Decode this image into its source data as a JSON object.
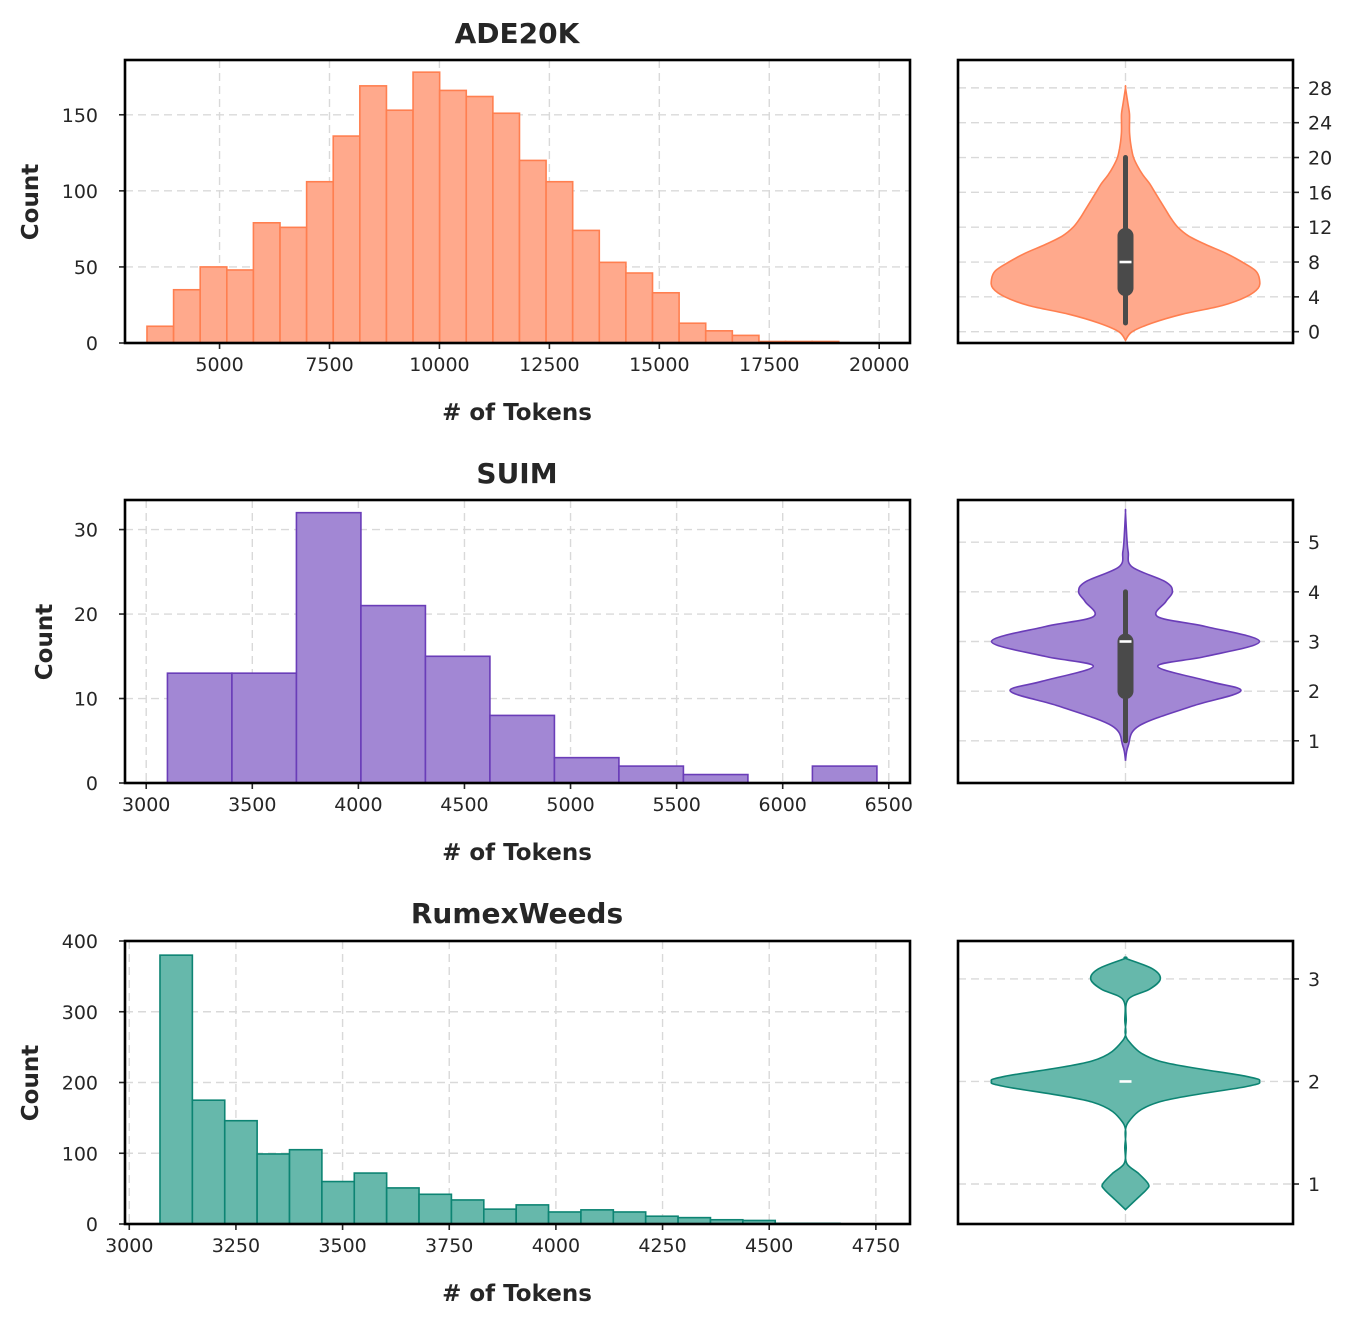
{
  "chart_data": [
    {
      "type": "histogram+violin",
      "title": "ADE20K",
      "xlabel": "# of Tokens",
      "ylabel": "Count",
      "color": "#ff7f50",
      "fill": "#ffa98c",
      "xlim": [
        2850,
        20700
      ],
      "ylim": [
        0,
        186
      ],
      "xticks": [
        5000,
        7500,
        10000,
        12500,
        15000,
        17500,
        20000
      ],
      "yticks": [
        0,
        50,
        100,
        150
      ],
      "bin_start": 3350,
      "bin_width": 605,
      "counts": [
        11,
        35,
        50,
        48,
        79,
        76,
        106,
        136,
        169,
        153,
        178,
        166,
        162,
        151,
        120,
        106,
        74,
        53,
        46,
        33,
        13,
        8,
        5,
        1,
        1,
        1,
        0
      ],
      "violin": {
        "ylim": [
          -1.3,
          31.2
        ],
        "yticks": [
          0,
          4,
          8,
          12,
          16,
          20,
          24,
          28
        ],
        "median": 8,
        "q1": 5,
        "q3": 11,
        "whisker_low": 1,
        "whisker_high": 20,
        "density_y": [
          -1,
          0,
          1,
          2,
          3,
          4,
          5,
          6,
          7,
          8,
          9,
          10,
          11,
          12,
          13,
          14,
          15,
          16,
          17,
          18,
          19,
          20,
          21,
          22,
          23,
          24,
          25,
          26,
          28
        ],
        "density_w": [
          0,
          0.05,
          0.2,
          0.42,
          0.72,
          0.9,
          0.99,
          1,
          0.97,
          0.87,
          0.75,
          0.6,
          0.47,
          0.39,
          0.34,
          0.3,
          0.26,
          0.22,
          0.18,
          0.13,
          0.09,
          0.06,
          0.045,
          0.035,
          0.03,
          0.03,
          0.03,
          0.02,
          0
        ]
      }
    },
    {
      "type": "histogram+violin",
      "title": "SUIM",
      "xlabel": "# of Tokens",
      "ylabel": "Count",
      "color": "#6a3db8",
      "fill": "#a287d4",
      "xlim": [
        2900,
        6600
      ],
      "ylim": [
        0,
        33.5
      ],
      "xticks": [
        3000,
        3500,
        4000,
        4500,
        5000,
        5500,
        6000,
        6500
      ],
      "yticks": [
        0,
        10,
        20,
        30
      ],
      "bin_start": 3100,
      "bin_width": 304,
      "counts": [
        13,
        13,
        32,
        21,
        15,
        8,
        3,
        2,
        1,
        0,
        2
      ],
      "violin": {
        "ylim": [
          0.15,
          5.85
        ],
        "yticks": [
          1,
          2,
          3,
          4,
          5
        ],
        "median": 3,
        "q1": 2,
        "q3": 3,
        "whisker_low": 1,
        "whisker_high": 4,
        "density_y": [
          0.6,
          0.9,
          1.3,
          1.7,
          2.0,
          2.2,
          2.5,
          2.7,
          3.0,
          3.3,
          3.5,
          3.8,
          4.0,
          4.2,
          4.5,
          4.8,
          5.1,
          5.6
        ],
        "density_w": [
          0,
          0.02,
          0.1,
          0.5,
          0.86,
          0.62,
          0.24,
          0.6,
          1,
          0.6,
          0.24,
          0.3,
          0.35,
          0.3,
          0.05,
          0.02,
          0.01,
          0
        ]
      }
    },
    {
      "type": "histogram+violin",
      "title": "RumexWeeds",
      "xlabel": "# of Tokens",
      "ylabel": "Count",
      "color": "#0d8473",
      "fill": "#66b8ab",
      "xlim": [
        2990,
        4830
      ],
      "ylim": [
        0,
        400
      ],
      "xticks": [
        3000,
        3250,
        3500,
        3750,
        4000,
        4250,
        4500,
        4750
      ],
      "yticks": [
        0,
        100,
        200,
        300,
        400
      ],
      "bin_start": 3072,
      "bin_width": 75.9,
      "counts": [
        380,
        175,
        146,
        99,
        105,
        60,
        72,
        51,
        42,
        34,
        21,
        27,
        17,
        20,
        17,
        11,
        9,
        6,
        5,
        1,
        1,
        0
      ],
      "violin": {
        "ylim": [
          0.61,
          3.37
        ],
        "yticks": [
          1,
          2,
          3
        ],
        "median": 2,
        "q1": 2,
        "q3": 2,
        "whisker_low": 2,
        "whisker_high": 2,
        "density_y": [
          0.75,
          0.85,
          0.95,
          1.0,
          1.1,
          1.2,
          1.35,
          1.6,
          1.8,
          1.95,
          2.0,
          2.05,
          2.2,
          2.4,
          2.6,
          2.8,
          2.9,
          3.0,
          3.1,
          3.2
        ],
        "density_w": [
          0,
          0.08,
          0.16,
          0.17,
          0.1,
          0.01,
          0.005,
          0.02,
          0.25,
          0.9,
          1,
          0.9,
          0.25,
          0.02,
          0.005,
          0.02,
          0.18,
          0.26,
          0.2,
          0
        ]
      }
    }
  ]
}
